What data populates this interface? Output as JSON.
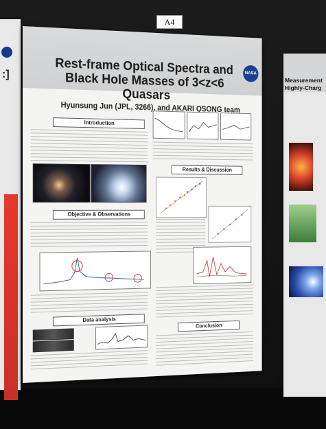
{
  "board_label": "A4",
  "left_poster": {
    "visible_bracket": ":]"
  },
  "poster": {
    "title": "Rest-frame Optical Spectra and Black Hole Masses of 3<z<6 Quasars",
    "authors": "Hyunsung Jun (JPL, 3266), and AKARI QSONG team",
    "logo": "NASA",
    "sections": {
      "introduction": "Introduction",
      "objective": "Objective & Observations",
      "data_analysis": "Data analysis",
      "results": "Results & Discussion",
      "conclusion": "Conclusion"
    }
  },
  "right_poster": {
    "title_line1": "Measurement",
    "title_line2": "Highly-Charg"
  },
  "colors": {
    "poster_bg": "#f4f4f3",
    "header_band": "#d9dadb",
    "nasa_blue": "#1b3f95",
    "neighbor_red": "#e53a2c"
  }
}
